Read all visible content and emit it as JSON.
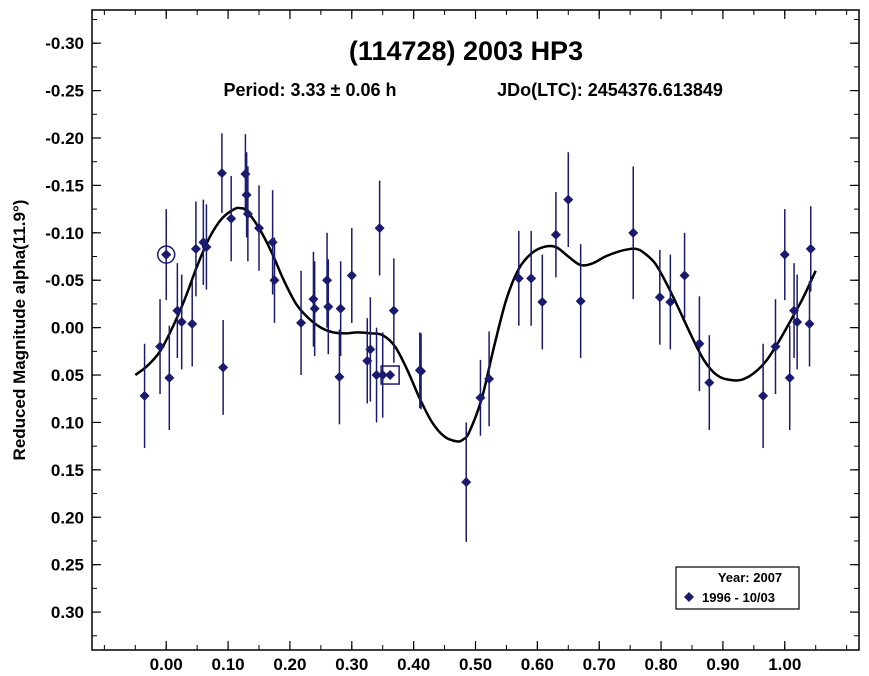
{
  "chart_data": {
    "type": "scatter",
    "title": "(114728) 2003 HP3",
    "subtitle_period": "Period: 3.33 ± 0.06 h",
    "subtitle_epoch": "JDo(LTC): 2454376.613849",
    "xlabel": "",
    "ylabel": "Reduced Magnitude alpha(11.9°)",
    "xlim": [
      -0.12,
      1.12
    ],
    "ylim": [
      -0.335,
      0.34
    ],
    "y_inverted": true,
    "x_ticks": [
      0.0,
      0.1,
      0.2,
      0.3,
      0.4,
      0.5,
      0.6,
      0.7,
      0.8,
      0.9,
      1.0
    ],
    "x_tick_labels": [
      "0.00",
      "0.10",
      "0.20",
      "0.30",
      "0.40",
      "0.50",
      "0.60",
      "0.70",
      "0.80",
      "0.90",
      "1.00"
    ],
    "y_ticks": [
      -0.3,
      -0.25,
      -0.2,
      -0.15,
      -0.1,
      -0.05,
      0.0,
      0.05,
      0.1,
      0.15,
      0.2,
      0.25,
      0.3
    ],
    "y_tick_labels": [
      "-0.30",
      "-0.25",
      "-0.20",
      "-0.15",
      "-0.10",
      "-0.05",
      "0.00",
      "0.05",
      "0.10",
      "0.15",
      "0.20",
      "0.25",
      "0.30"
    ],
    "grid": false,
    "legend_placement": "bottom-right",
    "legend": {
      "header": "Year: 2007",
      "entries": [
        {
          "label": "1996 - 10/03",
          "marker": "diamond"
        }
      ]
    },
    "marker_color": "#1a1a6e",
    "series": [
      {
        "name": "1996 - 10/03",
        "x": [
          -0.035,
          -0.01,
          0.0,
          0.005,
          0.018,
          0.025,
          0.042,
          0.048,
          0.06,
          0.065,
          0.09,
          0.092,
          0.105,
          0.128,
          0.13,
          0.132,
          0.15,
          0.172,
          0.175,
          0.218,
          0.238,
          0.24,
          0.26,
          0.262,
          0.28,
          0.282,
          0.3,
          0.325,
          0.33,
          0.34,
          0.345,
          0.35,
          0.368,
          0.41,
          0.412,
          0.485,
          0.508,
          0.522,
          0.57,
          0.59,
          0.608,
          0.63,
          0.65,
          0.67,
          0.755,
          0.798,
          0.815,
          0.838,
          0.862,
          0.878,
          0.965,
          0.985,
          1.0,
          1.008,
          1.015,
          1.02,
          1.04,
          1.042
        ],
        "y": [
          0.072,
          0.02,
          -0.077,
          0.053,
          -0.018,
          -0.006,
          -0.004,
          -0.083,
          -0.09,
          -0.085,
          -0.163,
          0.042,
          -0.115,
          -0.162,
          -0.14,
          -0.12,
          -0.105,
          -0.09,
          -0.05,
          -0.005,
          -0.03,
          -0.02,
          -0.05,
          -0.022,
          0.052,
          -0.02,
          -0.055,
          0.035,
          0.023,
          0.05,
          -0.105,
          0.05,
          -0.018,
          0.045,
          0.046,
          0.163,
          0.074,
          0.054,
          -0.052,
          -0.052,
          -0.027,
          -0.098,
          -0.135,
          -0.028,
          -0.1,
          -0.032,
          -0.027,
          -0.055,
          0.017,
          0.058,
          0.072,
          0.02,
          -0.077,
          0.053,
          -0.018,
          -0.006,
          -0.004,
          -0.083
        ],
        "err": [
          0.055,
          0.05,
          0.048,
          0.055,
          0.05,
          0.05,
          0.045,
          0.05,
          0.045,
          0.045,
          0.042,
          0.05,
          0.045,
          0.042,
          0.045,
          0.05,
          0.045,
          0.055,
          0.045,
          0.055,
          0.05,
          0.05,
          0.05,
          0.05,
          0.05,
          0.05,
          0.05,
          0.045,
          0.055,
          0.05,
          0.05,
          0.045,
          0.055,
          0.04,
          0.04,
          0.063,
          0.04,
          0.05,
          0.05,
          0.05,
          0.05,
          0.045,
          0.05,
          0.06,
          0.07,
          0.05,
          0.05,
          0.045,
          0.05,
          0.05,
          0.055,
          0.05,
          0.048,
          0.055,
          0.05,
          0.05,
          0.045,
          0.045
        ]
      }
    ],
    "highlighted_points": [
      {
        "x": 0.0,
        "y": -0.077,
        "marker": "circle"
      },
      {
        "x": 0.362,
        "y": 0.05,
        "marker": "square"
      }
    ],
    "fit_curve": {
      "x": [
        -0.05,
        -0.03,
        -0.01,
        0.01,
        0.03,
        0.05,
        0.07,
        0.09,
        0.11,
        0.12,
        0.13,
        0.15,
        0.17,
        0.19,
        0.21,
        0.23,
        0.25,
        0.27,
        0.29,
        0.31,
        0.33,
        0.35,
        0.37,
        0.39,
        0.41,
        0.43,
        0.45,
        0.47,
        0.48,
        0.49,
        0.51,
        0.53,
        0.55,
        0.57,
        0.59,
        0.61,
        0.63,
        0.65,
        0.67,
        0.69,
        0.71,
        0.73,
        0.75,
        0.76,
        0.77,
        0.79,
        0.81,
        0.83,
        0.85,
        0.87,
        0.89,
        0.91,
        0.93,
        0.95,
        0.97,
        0.99,
        1.01,
        1.03,
        1.05
      ],
      "y": [
        0.05,
        0.04,
        0.025,
        0.0,
        -0.03,
        -0.065,
        -0.095,
        -0.115,
        -0.125,
        -0.126,
        -0.123,
        -0.105,
        -0.08,
        -0.05,
        -0.025,
        -0.01,
        0.0,
        0.005,
        0.006,
        0.005,
        0.006,
        0.008,
        0.02,
        0.045,
        0.075,
        0.1,
        0.115,
        0.12,
        0.118,
        0.11,
        0.075,
        0.02,
        -0.03,
        -0.062,
        -0.078,
        -0.085,
        -0.085,
        -0.075,
        -0.066,
        -0.068,
        -0.075,
        -0.08,
        -0.083,
        -0.083,
        -0.08,
        -0.068,
        -0.045,
        -0.018,
        0.01,
        0.035,
        0.05,
        0.055,
        0.055,
        0.048,
        0.035,
        0.015,
        -0.008,
        -0.032,
        -0.06
      ]
    }
  }
}
